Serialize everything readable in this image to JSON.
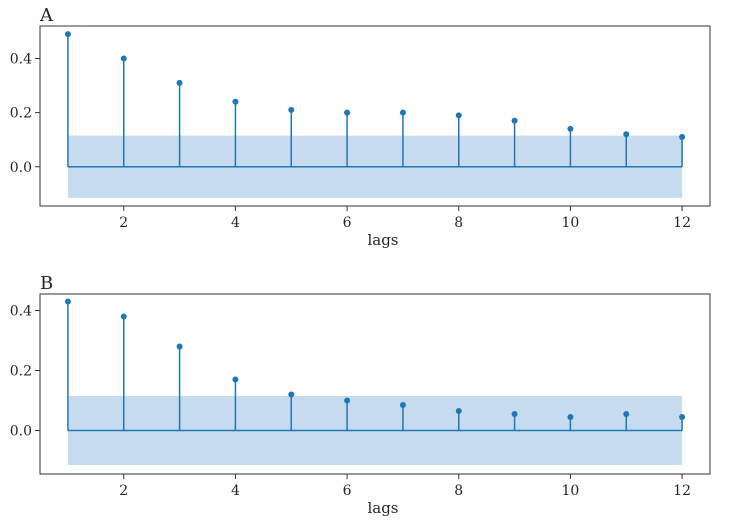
{
  "chart_data": [
    {
      "type": "stem",
      "panel_label": "A",
      "xlabel": "lags",
      "ylabel": "",
      "x": [
        1,
        2,
        3,
        4,
        5,
        6,
        7,
        8,
        9,
        10,
        11,
        12
      ],
      "values": [
        0.49,
        0.4,
        0.31,
        0.24,
        0.21,
        0.2,
        0.2,
        0.19,
        0.17,
        0.14,
        0.12,
        0.11
      ],
      "confidence_band": [
        -0.115,
        0.115
      ],
      "xlim": [
        0.5,
        12.5
      ],
      "ylim": [
        -0.145,
        0.52
      ],
      "xticks": [
        2,
        4,
        6,
        8,
        10,
        12
      ],
      "yticks": [
        0.0,
        0.2,
        0.4
      ],
      "xtick_labels": [
        "2",
        "4",
        "6",
        "8",
        "10",
        "12"
      ],
      "ytick_labels": [
        "0.0",
        "0.2",
        "0.4"
      ],
      "grid": false,
      "color": "#1f77b4",
      "band_color": "#c6dbef"
    },
    {
      "type": "stem",
      "panel_label": "B",
      "xlabel": "lags",
      "ylabel": "",
      "x": [
        1,
        2,
        3,
        4,
        5,
        6,
        7,
        8,
        9,
        10,
        11,
        12
      ],
      "values": [
        0.43,
        0.38,
        0.28,
        0.17,
        0.12,
        0.1,
        0.085,
        0.065,
        0.055,
        0.045,
        0.055,
        0.045
      ],
      "confidence_band": [
        -0.115,
        0.115
      ],
      "xlim": [
        0.5,
        12.5
      ],
      "ylim": [
        -0.145,
        0.455
      ],
      "xticks": [
        2,
        4,
        6,
        8,
        10,
        12
      ],
      "yticks": [
        0.0,
        0.2,
        0.4
      ],
      "xtick_labels": [
        "2",
        "4",
        "6",
        "8",
        "10",
        "12"
      ],
      "ytick_labels": [
        "0.0",
        "0.2",
        "0.4"
      ],
      "grid": false,
      "color": "#1f77b4",
      "band_color": "#c6dbef"
    }
  ]
}
